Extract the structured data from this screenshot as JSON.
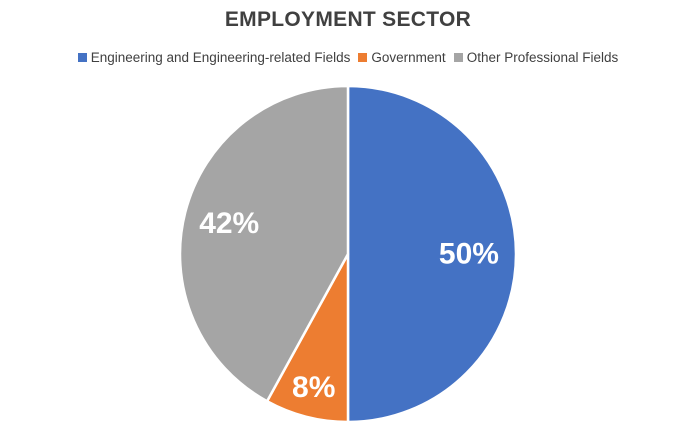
{
  "chart_data": {
    "type": "pie",
    "title": "EMPLOYMENT SECTOR",
    "legend_position": "top",
    "slices": [
      {
        "label": "Engineering and Engineering-related Fields",
        "value": 50,
        "display": "50%",
        "color": "#4472C4"
      },
      {
        "label": "Government",
        "value": 8,
        "display": "8%",
        "color": "#ED7D31"
      },
      {
        "label": "Other Professional Fields",
        "value": 42,
        "display": "42%",
        "color": "#A5A5A5"
      }
    ]
  }
}
